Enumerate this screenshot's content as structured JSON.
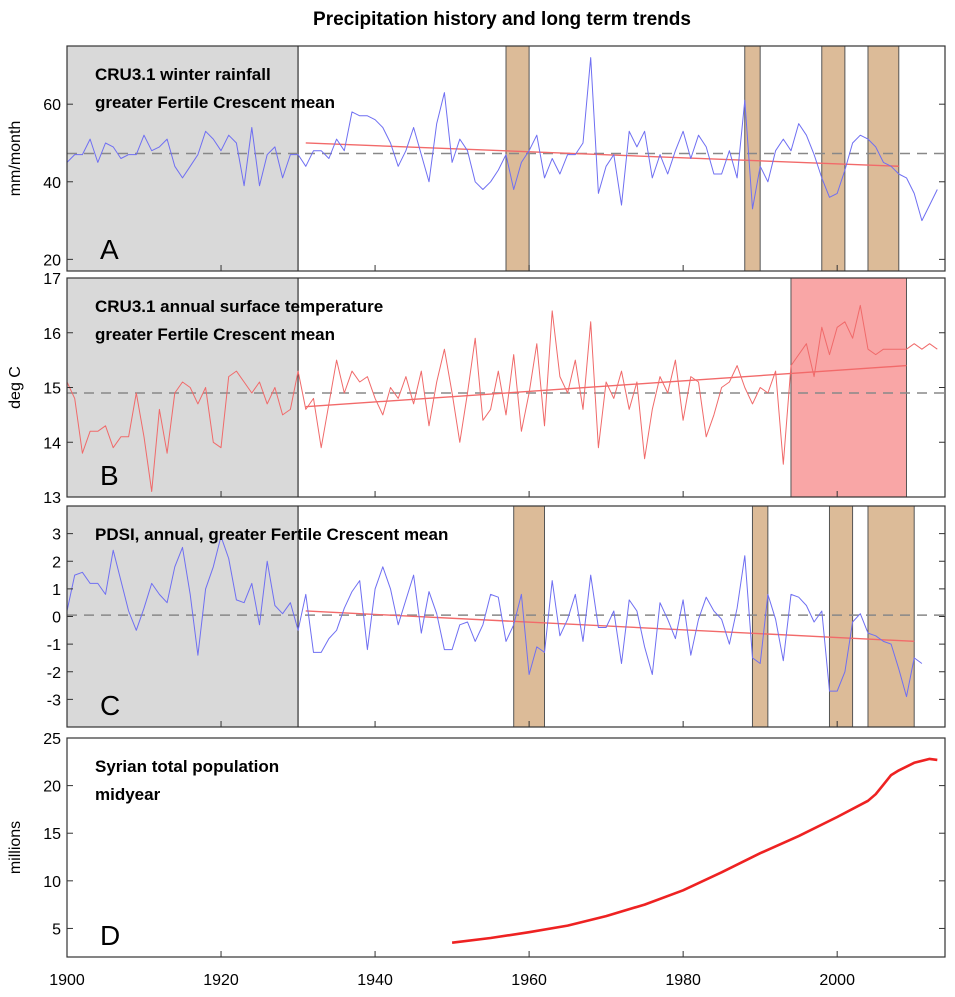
{
  "title": "Precipitation history and long term trends",
  "x_ticks": [
    "1900",
    "1920",
    "1940",
    "1960",
    "1980",
    "2000"
  ],
  "colors": {
    "blue": "#6f6ff2",
    "red": "#f06a6a",
    "trend": "#f26a6a",
    "pop": "#ee2222",
    "gray": "#d9d9d9",
    "tan": "#dcbb98",
    "pink": "#f9a6a6",
    "dash": "#888888"
  },
  "chart_data": [
    {
      "type": "line",
      "panel_letter": "A",
      "text_line1": "CRU3.1 winter rainfall",
      "text_line2": "greater Fertile Crescent mean",
      "ylabel": "mm/month",
      "xlim": [
        1900,
        2014
      ],
      "ylim": [
        17,
        75
      ],
      "yticks": [
        "20",
        "40",
        "60"
      ],
      "ytick_values": [
        20,
        40,
        60
      ],
      "baseline_period": [
        1900,
        1930
      ],
      "highlight_periods": [
        [
          1957,
          1960
        ],
        [
          1988,
          1990
        ],
        [
          1998,
          2001
        ],
        [
          2004,
          2008
        ]
      ],
      "mean": 47.3,
      "trend": {
        "x": [
          1931,
          2008
        ],
        "y": [
          50,
          44
        ]
      },
      "series": [
        {
          "x_start": 1900,
          "values": [
            45,
            47,
            47,
            51,
            45,
            50,
            49,
            46,
            47,
            47,
            52,
            48,
            49,
            51,
            44,
            41,
            44,
            47,
            53,
            51,
            48,
            52,
            50,
            39,
            54,
            39,
            47,
            49,
            41,
            47,
            47,
            44,
            48,
            48,
            46,
            51,
            48,
            58,
            57,
            57,
            56,
            54,
            50,
            44,
            48,
            54,
            47,
            40,
            55,
            63,
            45,
            51,
            48,
            40,
            38,
            40,
            43,
            47,
            38,
            45,
            48,
            52,
            41,
            46,
            42,
            47,
            47,
            50,
            72,
            37,
            44,
            47,
            34,
            53,
            49,
            53,
            41,
            47,
            42,
            48,
            53,
            46,
            52,
            49,
            42,
            42,
            48,
            41,
            61,
            33,
            44,
            40,
            48,
            51,
            48,
            55,
            52,
            47,
            41,
            36,
            37,
            43,
            50,
            52,
            51,
            49,
            45,
            44,
            42,
            41,
            37,
            30,
            34,
            38
          ]
        }
      ]
    },
    {
      "type": "line",
      "panel_letter": "B",
      "text_line1": "CRU3.1 annual surface temperature",
      "text_line2": "greater Fertile Crescent mean",
      "ylabel": "deg C",
      "xlim": [
        1900,
        2014
      ],
      "ylim": [
        13,
        17
      ],
      "yticks": [
        "13",
        "14",
        "15",
        "16",
        "17"
      ],
      "ytick_values": [
        13,
        14,
        15,
        16,
        17
      ],
      "baseline_period": [
        1900,
        1930
      ],
      "highlight_periods": [
        [
          1994,
          2009
        ]
      ],
      "mean": 14.9,
      "trend": {
        "x": [
          1931,
          2009
        ],
        "y": [
          14.65,
          15.4
        ]
      },
      "series": [
        {
          "x_start": 1900,
          "values": [
            15.1,
            14.8,
            13.8,
            14.2,
            14.2,
            14.3,
            13.9,
            14.1,
            14.1,
            14.9,
            14.1,
            13.1,
            14.6,
            13.8,
            14.9,
            15.1,
            15.0,
            14.7,
            15.0,
            14.0,
            13.9,
            15.2,
            15.3,
            15.1,
            14.9,
            15.1,
            14.7,
            15.0,
            14.5,
            14.6,
            15.3,
            14.6,
            14.8,
            13.9,
            14.7,
            15.5,
            14.9,
            15.3,
            15.1,
            15.2,
            14.8,
            14.5,
            15.0,
            14.8,
            15.2,
            14.7,
            15.3,
            14.3,
            15.1,
            15.7,
            14.9,
            14.0,
            14.9,
            15.9,
            14.4,
            14.6,
            15.3,
            14.5,
            15.6,
            14.2,
            14.9,
            15.8,
            14.3,
            16.4,
            15.2,
            14.9,
            15.5,
            14.6,
            16.2,
            13.9,
            15.1,
            14.8,
            15.3,
            14.6,
            15.1,
            13.7,
            14.6,
            15.2,
            14.9,
            15.5,
            14.4,
            15.2,
            15.1,
            14.1,
            14.5,
            15.0,
            15.1,
            15.4,
            15.0,
            14.7,
            15.0,
            14.9,
            15.3,
            13.6,
            15.4,
            15.6,
            15.8,
            15.2,
            16.1,
            15.6,
            16.1,
            16.2,
            15.9,
            16.5,
            15.7,
            15.6,
            15.7,
            15.7,
            15.7,
            15.7,
            15.8,
            15.7,
            15.8,
            15.7
          ]
        }
      ]
    },
    {
      "type": "line",
      "panel_letter": "C",
      "text_line1": "PDSI, annual, greater Fertile Crescent mean",
      "ylabel": "",
      "xlim": [
        1900,
        2014
      ],
      "ylim": [
        -4,
        4
      ],
      "yticks": [
        "-3",
        "-2",
        "-1",
        "0",
        "1",
        "2",
        "3"
      ],
      "ytick_values": [
        -3,
        -2,
        -1,
        0,
        1,
        2,
        3
      ],
      "baseline_period": [
        1900,
        1930
      ],
      "highlight_periods": [
        [
          1958,
          1962
        ],
        [
          1989,
          1991
        ],
        [
          1999,
          2002
        ],
        [
          2004,
          2010
        ]
      ],
      "mean": 0.05,
      "trend": {
        "x": [
          1931,
          2010
        ],
        "y": [
          0.2,
          -0.9
        ]
      },
      "series": [
        {
          "x_start": 1900,
          "values": [
            0.2,
            1.5,
            1.6,
            1.2,
            1.2,
            0.8,
            2.4,
            1.3,
            0.2,
            -0.5,
            0.3,
            1.2,
            0.8,
            0.5,
            1.8,
            2.5,
            0.8,
            -1.4,
            1.0,
            1.8,
            2.9,
            2.1,
            0.6,
            0.5,
            1.2,
            -0.3,
            2.0,
            0.4,
            0.1,
            0.5,
            -0.5,
            0.8,
            -1.3,
            -1.3,
            -0.8,
            -0.5,
            0.3,
            0.9,
            1.3,
            -1.2,
            1.0,
            1.8,
            1.0,
            -0.3,
            0.6,
            1.5,
            -0.6,
            0.9,
            0.1,
            -1.2,
            -1.2,
            -0.3,
            -0.2,
            -0.9,
            -0.3,
            0.8,
            0.7,
            -0.9,
            -0.3,
            0.8,
            -2.1,
            -1.1,
            -1.3,
            1.3,
            -0.7,
            -0.1,
            0.8,
            -0.9,
            1.5,
            -0.4,
            -0.4,
            0.2,
            -1.7,
            0.6,
            0.2,
            -1.1,
            -2.1,
            0.5,
            -0.1,
            -0.8,
            0.6,
            -1.4,
            -0.1,
            0.7,
            0.2,
            -0.1,
            -1.0,
            0.3,
            2.2,
            -1.5,
            -1.7,
            0.8,
            -0.1,
            -1.6,
            0.8,
            0.7,
            0.4,
            -0.2,
            0.2,
            -2.7,
            -2.7,
            -2.0,
            -0.2,
            0.1,
            -0.6,
            -0.7,
            -0.9,
            -1.0,
            -1.9,
            -2.9,
            -1.5,
            -1.7
          ]
        }
      ]
    },
    {
      "type": "line",
      "panel_letter": "D",
      "text_line1": "Syrian total population",
      "text_line2": "midyear",
      "ylabel": "millions",
      "xlim": [
        1900,
        2014
      ],
      "ylim": [
        2,
        25
      ],
      "yticks": [
        "5",
        "10",
        "15",
        "20",
        "25"
      ],
      "ytick_values": [
        5,
        10,
        15,
        20,
        25
      ],
      "series": [
        {
          "x": [
            1950,
            1955,
            1960,
            1965,
            1970,
            1975,
            1980,
            1985,
            1990,
            1995,
            2000,
            2004,
            2005,
            2006,
            2007,
            2008,
            2010,
            2012,
            2013
          ],
          "values": [
            3.5,
            4.0,
            4.6,
            5.3,
            6.3,
            7.5,
            9.0,
            10.9,
            12.9,
            14.7,
            16.7,
            18.4,
            19.1,
            20.1,
            21.1,
            21.6,
            22.4,
            22.8,
            22.7
          ]
        }
      ]
    }
  ]
}
